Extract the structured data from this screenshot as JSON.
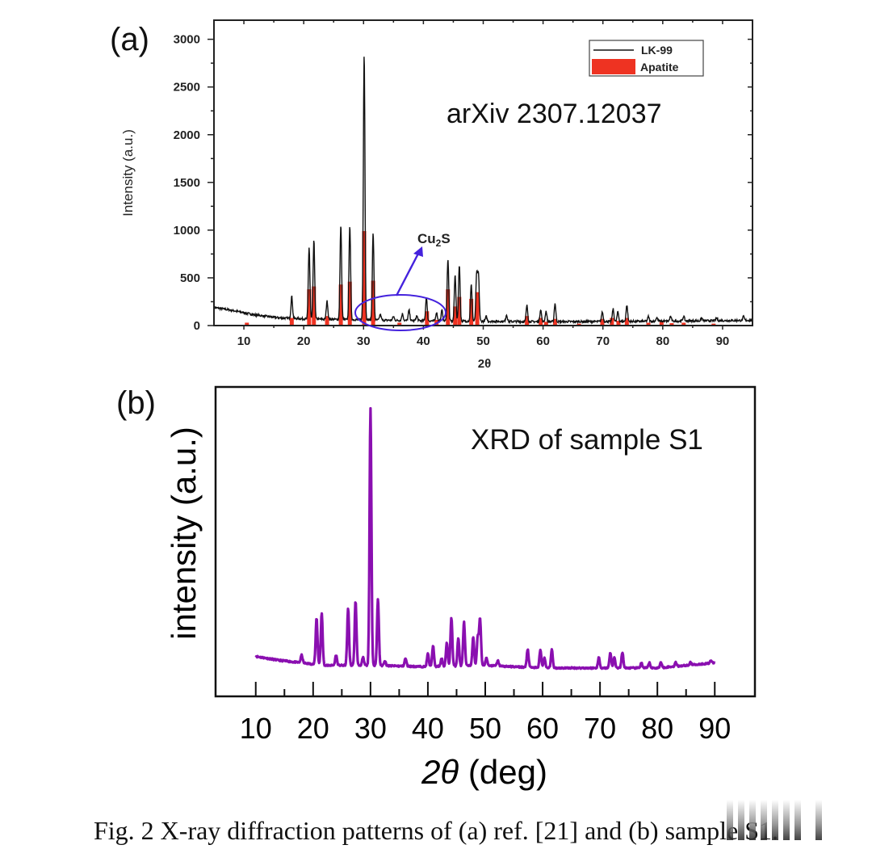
{
  "chart_data": [
    {
      "id": "a",
      "type": "line",
      "panel_label": "(a)",
      "annotation": "arXiv 2307.12037",
      "xlabel": "2θ",
      "ylabel": "Intensity (a.u.)",
      "xlim": [
        5,
        95
      ],
      "ylim": [
        0,
        3200
      ],
      "xticks": [
        10,
        20,
        30,
        40,
        50,
        60,
        70,
        80,
        90
      ],
      "yticks": [
        0,
        500,
        1000,
        1500,
        2000,
        2500,
        3000
      ],
      "legend": {
        "placement": "top-right",
        "entries": [
          {
            "label": "LK-99",
            "style": "line",
            "color": "#111111"
          },
          {
            "label": "Apatite",
            "style": "bar",
            "color": "#ee3322"
          }
        ]
      },
      "callout": {
        "label": "Cu2S",
        "label_main": "Cu",
        "label_sub": "2",
        "label_tail": "S",
        "region_x": [
          33,
          40
        ],
        "color": "#4422dd"
      },
      "series": [
        {
          "name": "LK-99",
          "color": "#111111",
          "baseline": [
            [
              5,
              190
            ],
            [
              8,
              160
            ],
            [
              12,
              110
            ],
            [
              16,
              80
            ],
            [
              20,
              70
            ],
            [
              30,
              60
            ],
            [
              40,
              50
            ],
            [
              60,
              40
            ],
            [
              80,
              45
            ],
            [
              95,
              55
            ]
          ],
          "peaks": [
            [
              18.0,
              230
            ],
            [
              20.9,
              750
            ],
            [
              21.7,
              820
            ],
            [
              23.9,
              190
            ],
            [
              26.2,
              990
            ],
            [
              27.7,
              990
            ],
            [
              30.1,
              2800
            ],
            [
              31.6,
              910
            ],
            [
              32.8,
              60
            ],
            [
              35.0,
              40
            ],
            [
              36.5,
              70
            ],
            [
              37.6,
              110
            ],
            [
              38.9,
              50
            ],
            [
              40.5,
              250
            ],
            [
              42.2,
              90
            ],
            [
              43.1,
              110
            ],
            [
              44.1,
              650
            ],
            [
              45.3,
              480
            ],
            [
              46.0,
              590
            ],
            [
              48.0,
              380
            ],
            [
              48.9,
              490
            ],
            [
              49.2,
              480
            ],
            [
              50.5,
              50
            ],
            [
              53.9,
              70
            ],
            [
              57.3,
              170
            ],
            [
              59.6,
              130
            ],
            [
              60.5,
              110
            ],
            [
              62.0,
              190
            ],
            [
              69.9,
              100
            ],
            [
              71.7,
              130
            ],
            [
              72.5,
              100
            ],
            [
              74.0,
              170
            ],
            [
              77.6,
              50
            ],
            [
              79.0,
              40
            ],
            [
              81.3,
              50
            ],
            [
              83.5,
              50
            ],
            [
              86.5,
              30
            ],
            [
              89.0,
              30
            ],
            [
              93.5,
              40
            ]
          ]
        },
        {
          "name": "Apatite",
          "color": "#ee3322",
          "bars": [
            [
              10.5,
              30
            ],
            [
              18.0,
              80
            ],
            [
              20.9,
              380
            ],
            [
              21.7,
              410
            ],
            [
              23.9,
              100
            ],
            [
              26.2,
              430
            ],
            [
              27.7,
              460
            ],
            [
              30.1,
              990
            ],
            [
              31.6,
              470
            ],
            [
              36.0,
              30
            ],
            [
              40.6,
              150
            ],
            [
              42.2,
              60
            ],
            [
              44.1,
              380
            ],
            [
              45.3,
              200
            ],
            [
              46.0,
              300
            ],
            [
              48.0,
              280
            ],
            [
              49.0,
              350
            ],
            [
              57.3,
              100
            ],
            [
              59.6,
              80
            ],
            [
              60.5,
              40
            ],
            [
              62.0,
              70
            ],
            [
              66.0,
              20
            ],
            [
              69.9,
              70
            ],
            [
              71.5,
              80
            ],
            [
              72.6,
              50
            ],
            [
              74.0,
              80
            ],
            [
              77.6,
              30
            ],
            [
              79.8,
              40
            ],
            [
              81.5,
              25
            ],
            [
              83.5,
              30
            ],
            [
              88.5,
              20
            ]
          ]
        }
      ]
    },
    {
      "id": "b",
      "type": "line",
      "panel_label": "(b)",
      "annotation": "XRD of sample S1",
      "xlabel": "2θ (deg)",
      "xlabel_main": "2θ",
      "xlabel_tail": " (deg)",
      "ylabel": "intensity (a.u.)",
      "xlim": [
        3,
        97
      ],
      "ylim": [
        -0.12,
        1.08
      ],
      "xticks": [
        10,
        20,
        30,
        40,
        50,
        60,
        70,
        80,
        90
      ],
      "grid": false,
      "series": [
        {
          "name": "S1",
          "color": "#8a0fb0",
          "x_range": [
            10,
            90
          ],
          "baseline": [
            [
              10,
              0.035
            ],
            [
              14,
              0.02
            ],
            [
              18,
              0.01
            ],
            [
              22,
              0.0
            ],
            [
              30,
              0.0
            ],
            [
              40,
              -0.005
            ],
            [
              50,
              0.0
            ],
            [
              60,
              -0.01
            ],
            [
              70,
              -0.01
            ],
            [
              80,
              -0.01
            ],
            [
              90,
              0.01
            ]
          ],
          "peaks": [
            [
              18.0,
              0.03
            ],
            [
              20.6,
              0.18
            ],
            [
              21.5,
              0.2
            ],
            [
              24.0,
              0.04
            ],
            [
              26.1,
              0.22
            ],
            [
              27.4,
              0.25
            ],
            [
              28.7,
              0.03
            ],
            [
              30.0,
              1.0
            ],
            [
              31.3,
              0.26
            ],
            [
              32.5,
              0.02
            ],
            [
              36.1,
              0.03
            ],
            [
              40.0,
              0.05
            ],
            [
              40.9,
              0.08
            ],
            [
              42.4,
              0.03
            ],
            [
              43.3,
              0.09
            ],
            [
              44.1,
              0.19
            ],
            [
              45.3,
              0.11
            ],
            [
              46.3,
              0.17
            ],
            [
              47.9,
              0.11
            ],
            [
              48.7,
              0.11
            ],
            [
              49.1,
              0.18
            ],
            [
              50.2,
              0.03
            ],
            [
              52.2,
              0.02
            ],
            [
              57.4,
              0.07
            ],
            [
              59.6,
              0.07
            ],
            [
              60.3,
              0.04
            ],
            [
              61.6,
              0.07
            ],
            [
              69.8,
              0.04
            ],
            [
              71.8,
              0.06
            ],
            [
              72.5,
              0.04
            ],
            [
              73.9,
              0.06
            ],
            [
              77.2,
              0.02
            ],
            [
              78.6,
              0.02
            ],
            [
              80.6,
              0.02
            ],
            [
              83.2,
              0.015
            ],
            [
              85.8,
              0.01
            ],
            [
              89.3,
              0.01
            ]
          ]
        }
      ]
    }
  ],
  "caption": "Fig. 2 X-ray diffraction patterns of (a) ref. [21] and (b) sample S1."
}
